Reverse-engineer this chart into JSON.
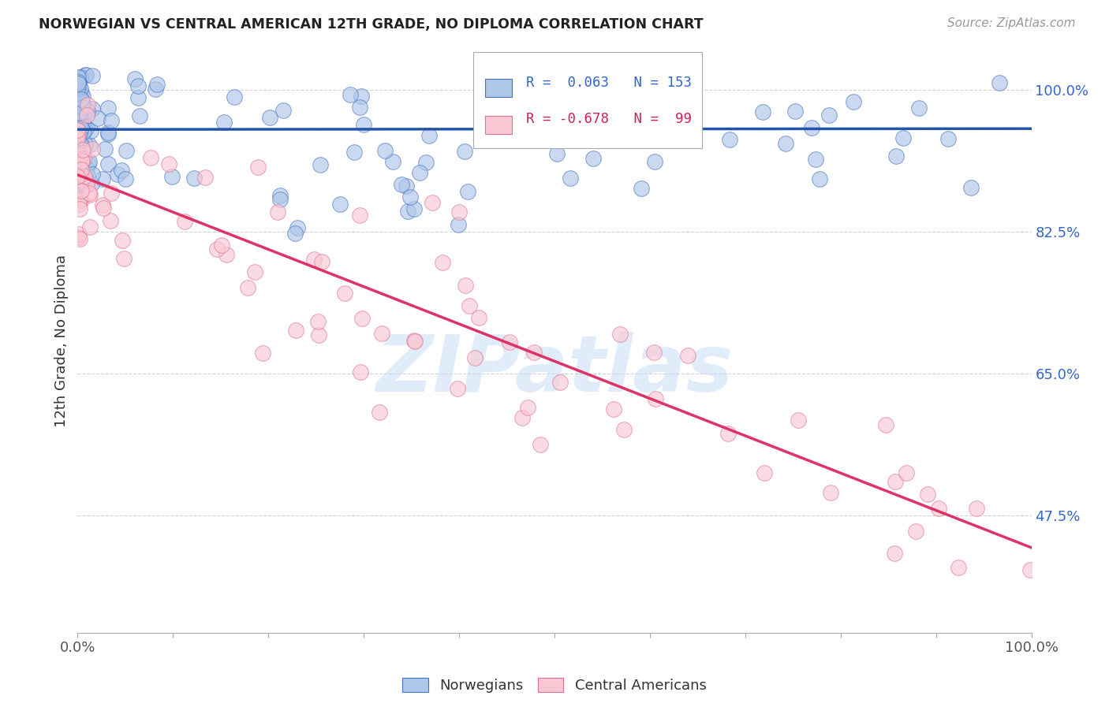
{
  "title": "NORWEGIAN VS CENTRAL AMERICAN 12TH GRADE, NO DIPLOMA CORRELATION CHART",
  "source": "Source: ZipAtlas.com",
  "ylabel": "12th Grade, No Diploma",
  "legend_text_nor": "R =  0.063   N = 153",
  "legend_text_cen": "R = -0.678   N =  99",
  "legend_label_nor": "Norwegians",
  "legend_label_cen": "Central Americans",
  "norwegian_fill": "#aec6e8",
  "norwegian_edge": "#4472c4",
  "central_fill": "#f9c8d4",
  "central_edge": "#e07090",
  "trend_nor_color": "#2255aa",
  "trend_cen_color": "#dd3366",
  "watermark": "ZIPatlas",
  "watermark_color": "#c8ddf5",
  "background_color": "#ffffff",
  "grid_color": "#cccccc",
  "title_color": "#222222",
  "source_color": "#999999",
  "ytick_color": "#3366cc",
  "xtick_color": "#555555",
  "xlim": [
    0.0,
    1.0
  ],
  "ylim_min": 0.33,
  "ylim_max": 1.05,
  "yticks": [
    0.475,
    0.65,
    0.825,
    1.0
  ],
  "ytick_labels": [
    "47.5%",
    "65.0%",
    "82.5%",
    "100.0%"
  ],
  "xticks": [
    0.0,
    0.1,
    0.2,
    0.3,
    0.4,
    0.5,
    0.6,
    0.7,
    0.8,
    0.9,
    1.0
  ],
  "trend_nor_x0": 0.0,
  "trend_nor_y0": 0.951,
  "trend_nor_x1": 1.0,
  "trend_nor_y1": 0.952,
  "trend_cen_x0": 0.0,
  "trend_cen_y0": 0.895,
  "trend_cen_x1": 1.0,
  "trend_cen_y1": 0.435
}
